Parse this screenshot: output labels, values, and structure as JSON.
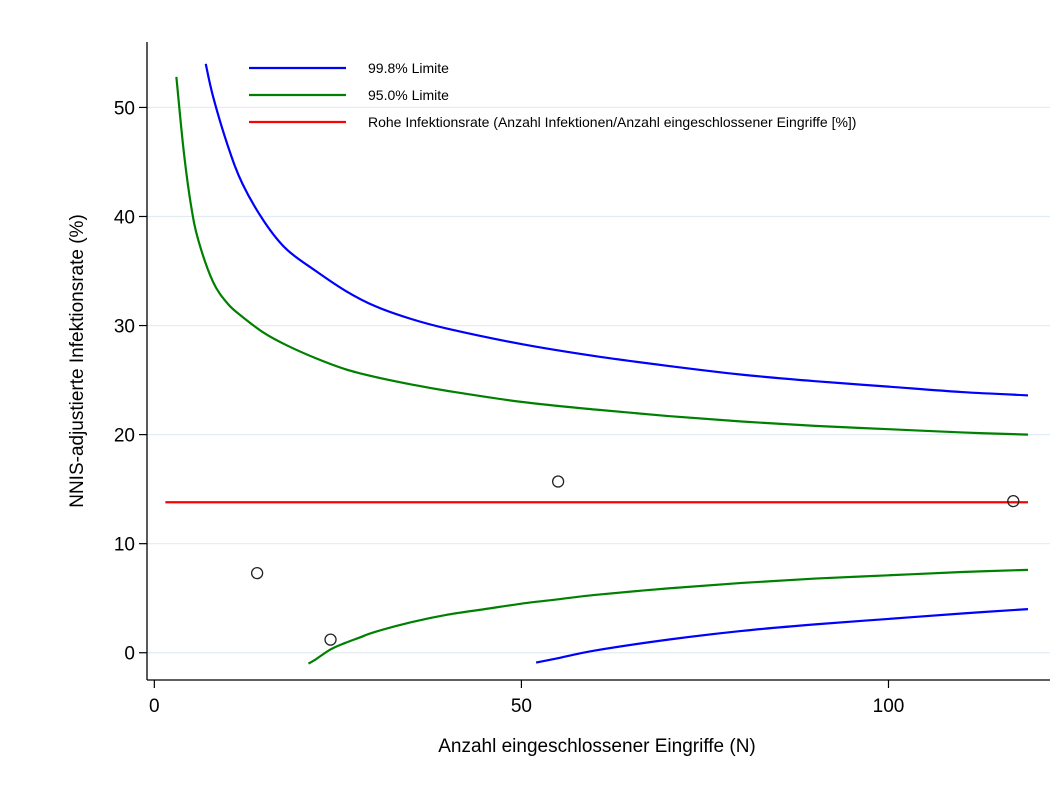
{
  "chart_data": {
    "type": "line",
    "title": "",
    "xlabel": "Anzahl eingeschlossener Eingriffe (N)",
    "ylabel": "NNIS-adjustierte Infektionsrate (%)",
    "xlim": [
      -1,
      122
    ],
    "ylim": [
      -2.5,
      56
    ],
    "xticks": [
      0,
      50,
      100
    ],
    "yticks": [
      0,
      10,
      20,
      30,
      40,
      50
    ],
    "grid": true,
    "legend_position": "top",
    "series": [
      {
        "name": "99.8% Limite",
        "color": "#0000ff",
        "segments": [
          {
            "x": [
              7,
              8,
              10,
              12,
              15,
              18,
              22,
              26,
              30,
              35,
              40,
              50,
              60,
              70,
              80,
              90,
              100,
              110,
              119
            ],
            "y": [
              54.0,
              51.0,
              46.5,
              43.0,
              39.5,
              37.0,
              35.0,
              33.2,
              31.8,
              30.6,
              29.7,
              28.3,
              27.2,
              26.3,
              25.5,
              24.9,
              24.4,
              23.9,
              23.6
            ]
          },
          {
            "x": [
              52,
              55,
              60,
              70,
              80,
              90,
              100,
              110,
              119
            ],
            "y": [
              -0.9,
              -0.5,
              0.2,
              1.2,
              2.0,
              2.6,
              3.1,
              3.6,
              4.0
            ]
          }
        ]
      },
      {
        "name": "95.0% Limite",
        "color": "#008000",
        "segments": [
          {
            "x": [
              3,
              4,
              5,
              6,
              8,
              10,
              12,
              15,
              18,
              22,
              26,
              30,
              35,
              40,
              50,
              60,
              70,
              80,
              90,
              100,
              110,
              119
            ],
            "y": [
              52.8,
              46.0,
              41.0,
              37.8,
              34.0,
              32.0,
              30.8,
              29.3,
              28.2,
              27.0,
              26.0,
              25.3,
              24.6,
              24.0,
              23.0,
              22.3,
              21.7,
              21.2,
              20.8,
              20.5,
              20.2,
              20.0
            ]
          },
          {
            "x": [
              21,
              22,
              24,
              26,
              28,
              30,
              35,
              40,
              45,
              50,
              55,
              60,
              70,
              80,
              90,
              100,
              110,
              119
            ],
            "y": [
              -1.0,
              -0.6,
              0.3,
              0.9,
              1.4,
              1.9,
              2.8,
              3.5,
              4.0,
              4.5,
              4.9,
              5.3,
              5.9,
              6.4,
              6.8,
              7.1,
              7.4,
              7.6
            ]
          }
        ]
      },
      {
        "name": "Rohe Infektionsrate (Anzahl Infektionen/Anzahl eingeschlossener Eingriffe [%])",
        "color": "#ff0000",
        "segments": [
          {
            "x": [
              1.5,
              119
            ],
            "y": [
              13.8,
              13.8
            ]
          }
        ]
      }
    ],
    "points": {
      "x": [
        14,
        24,
        55,
        117
      ],
      "y": [
        7.3,
        1.2,
        15.7,
        13.9
      ]
    }
  }
}
